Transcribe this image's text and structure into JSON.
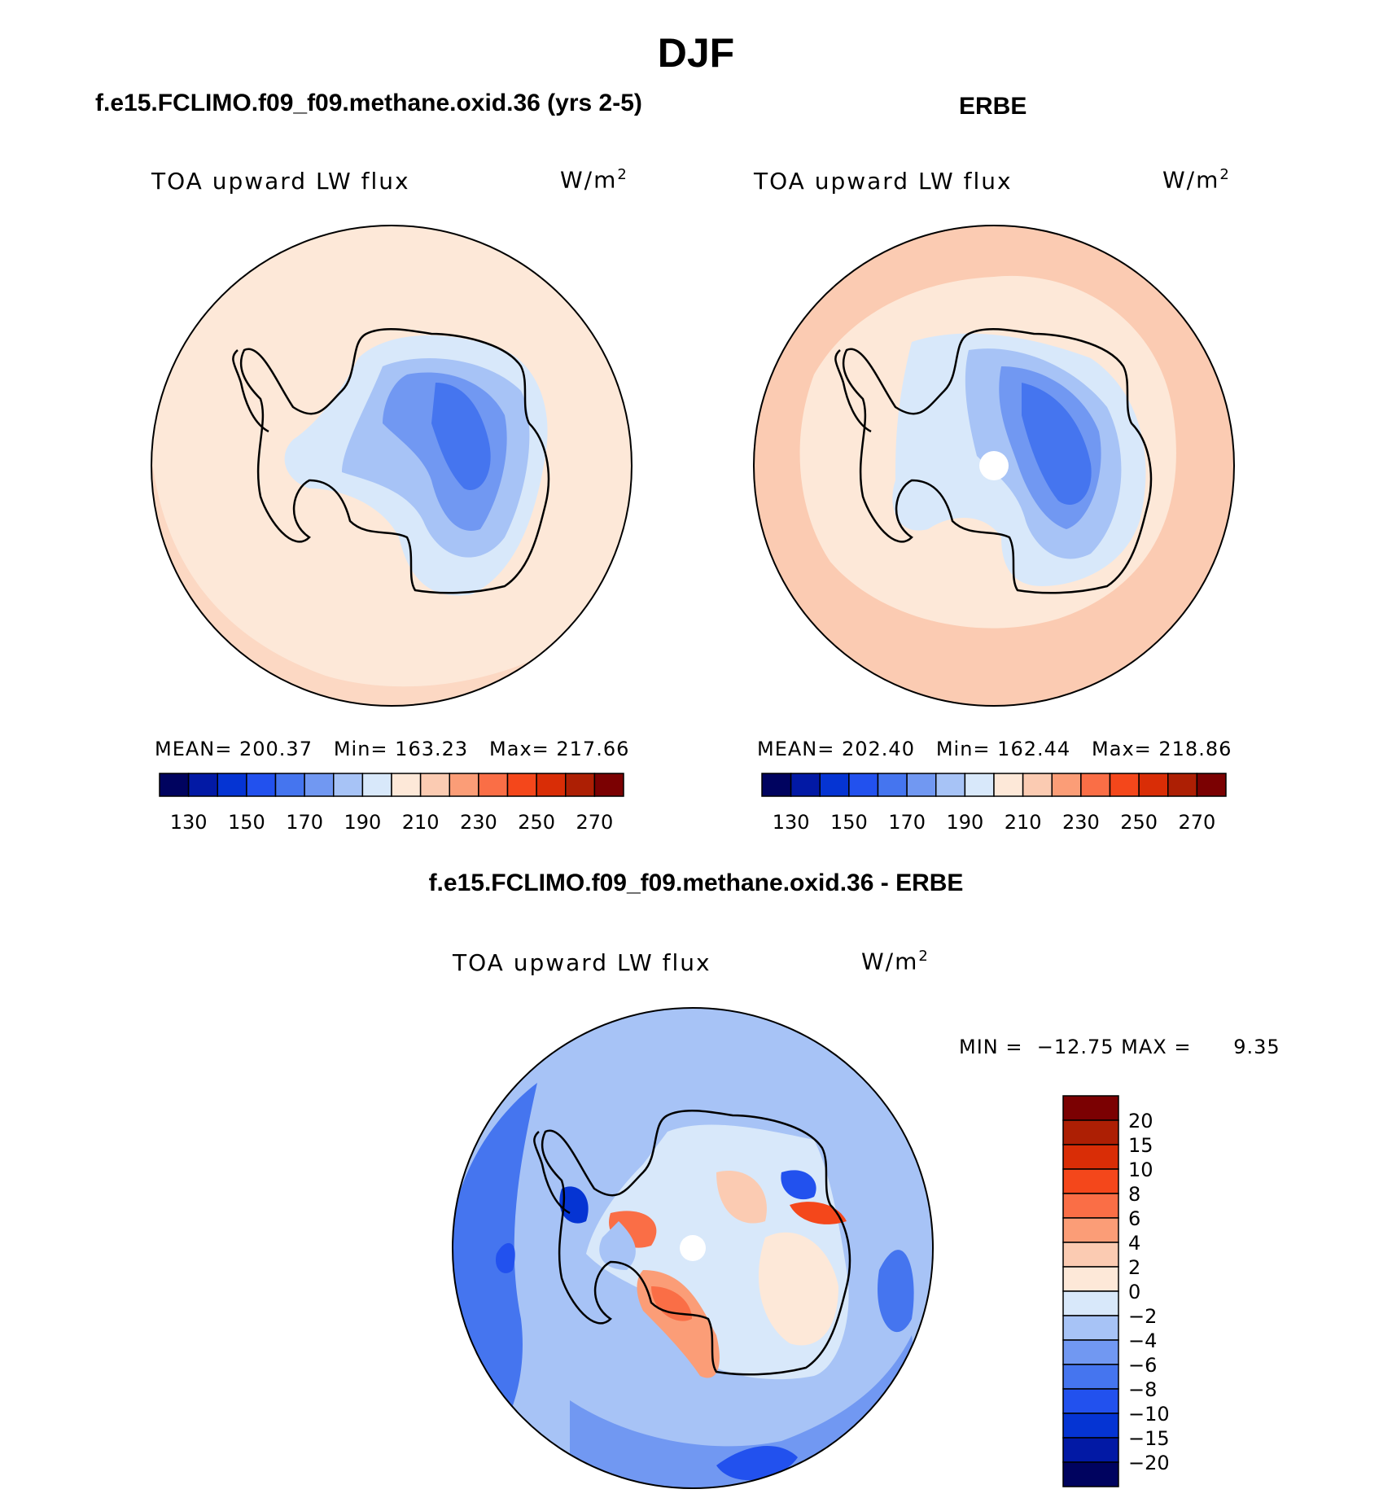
{
  "figure": {
    "season_title": "DJF",
    "model_panel_title": "f.e15.FCLIMO.f09_f09.methane.oxid.36 (yrs 2-5)",
    "obs_panel_title": "ERBE",
    "diff_panel_title": "f.e15.FCLIMO.f09_f09.methane.oxid.36 - ERBE"
  },
  "panels": {
    "model": {
      "variable": "TOA upward LW flux",
      "units": "W/m",
      "units_sup": "2",
      "stats_text": "MEAN= 200.37   Min= 163.23   Max= 217.66",
      "stats": {
        "mean": 200.37,
        "min": 163.23,
        "max": 217.66
      }
    },
    "obs": {
      "variable": "TOA upward LW flux",
      "units": "W/m",
      "units_sup": "2",
      "stats_text": "MEAN= 202.40   Min= 162.44   Max= 218.86",
      "stats": {
        "mean": 202.4,
        "min": 162.44,
        "max": 218.86
      }
    },
    "diff": {
      "variable": "TOA upward LW flux",
      "units": "W/m",
      "units_sup": "2",
      "stats_text": "MIN =  −12.75 MAX =      9.35",
      "stats": {
        "min": -12.75,
        "max": 9.35
      }
    }
  },
  "colorbars": {
    "abs_colors": [
      "#00035f",
      "#0219a5",
      "#0534d3",
      "#2251ee",
      "#4575ef",
      "#7198f2",
      "#a7c3f6",
      "#d8e8fa",
      "#fde8d8",
      "#fbcbb2",
      "#fb9d77",
      "#fa6e46",
      "#f4471b",
      "#d92d06",
      "#ad1f04",
      "#7b0102"
    ],
    "abs_ticks": [
      "130",
      "150",
      "170",
      "190",
      "210",
      "230",
      "250",
      "270"
    ],
    "diff_colors": [
      "#7b0102",
      "#ad1f04",
      "#d92d06",
      "#f4471b",
      "#fa6e46",
      "#fb9d77",
      "#fbcbb2",
      "#fde8d8",
      "#d8e8fa",
      "#a7c3f6",
      "#7198f2",
      "#4575ef",
      "#2251ee",
      "#0534d3",
      "#0219a5",
      "#00035f"
    ],
    "diff_ticks": [
      "20",
      "15",
      "10",
      "8",
      "6",
      "4",
      "2",
      "0",
      "−2",
      "−4",
      "−6",
      "−8",
      "−10",
      "−15",
      "−20"
    ]
  },
  "chart_data": [
    {
      "type": "heatmap",
      "title": "f.e15.FCLIMO.f09_f09.methane.oxid.36 (yrs 2-5)",
      "projection": "south polar stereographic",
      "variable": "TOA upward LW flux",
      "units": "W/m2",
      "contour_levels": [
        130,
        140,
        150,
        160,
        170,
        180,
        190,
        200,
        210,
        220,
        230,
        240,
        250,
        260,
        270
      ],
      "mean": 200.37,
      "min": 163.23,
      "max": 217.66
    },
    {
      "type": "heatmap",
      "title": "ERBE",
      "projection": "south polar stereographic",
      "variable": "TOA upward LW flux",
      "units": "W/m2",
      "contour_levels": [
        130,
        140,
        150,
        160,
        170,
        180,
        190,
        200,
        210,
        220,
        230,
        240,
        250,
        260,
        270
      ],
      "mean": 202.4,
      "min": 162.44,
      "max": 218.86
    },
    {
      "type": "heatmap",
      "title": "f.e15.FCLIMO.f09_f09.methane.oxid.36 - ERBE",
      "projection": "south polar stereographic",
      "variable": "TOA upward LW flux",
      "units": "W/m2",
      "contour_levels": [
        -20,
        -15,
        -10,
        -8,
        -6,
        -4,
        -2,
        0,
        2,
        4,
        6,
        8,
        10,
        15,
        20
      ],
      "min": -12.75,
      "max": 9.35
    }
  ]
}
